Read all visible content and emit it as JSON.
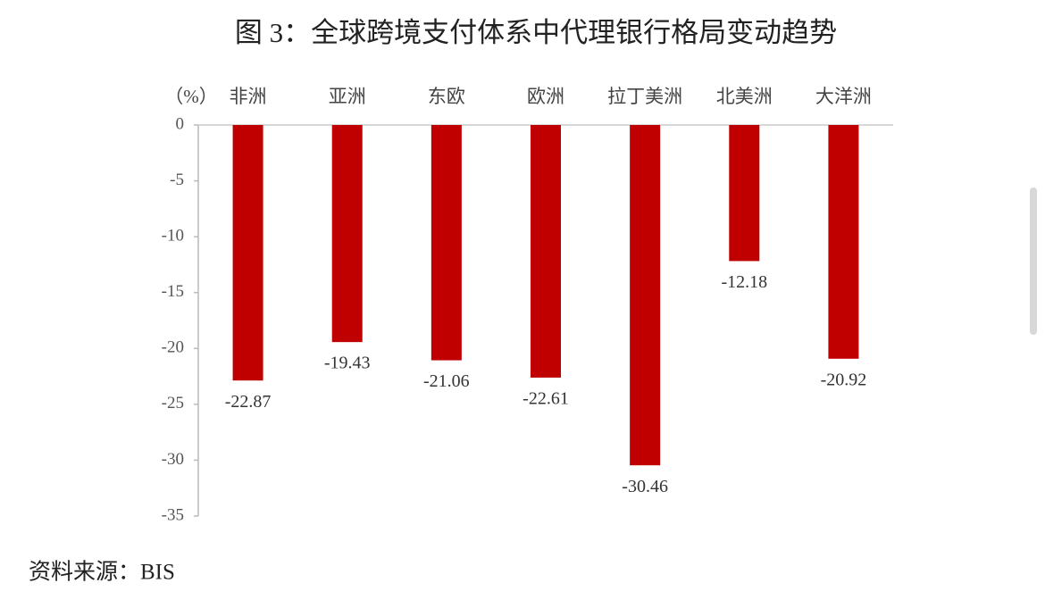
{
  "chart_data": {
    "type": "bar",
    "title": "图 3：全球跨境支付体系中代理银行格局变动趋势",
    "y_label": "（%）",
    "categories": [
      "非洲",
      "亚洲",
      "东欧",
      "欧洲",
      "拉丁美洲",
      "北美洲",
      "大洋洲"
    ],
    "values": [
      -22.87,
      -19.43,
      -21.06,
      -22.61,
      -30.46,
      -12.18,
      -20.92
    ],
    "color": "#c00000",
    "ylim": [
      -35,
      0
    ],
    "yticks": [
      0,
      -5,
      -10,
      -15,
      -20,
      -25,
      -30,
      -35
    ],
    "source": "资料来源：BIS"
  }
}
